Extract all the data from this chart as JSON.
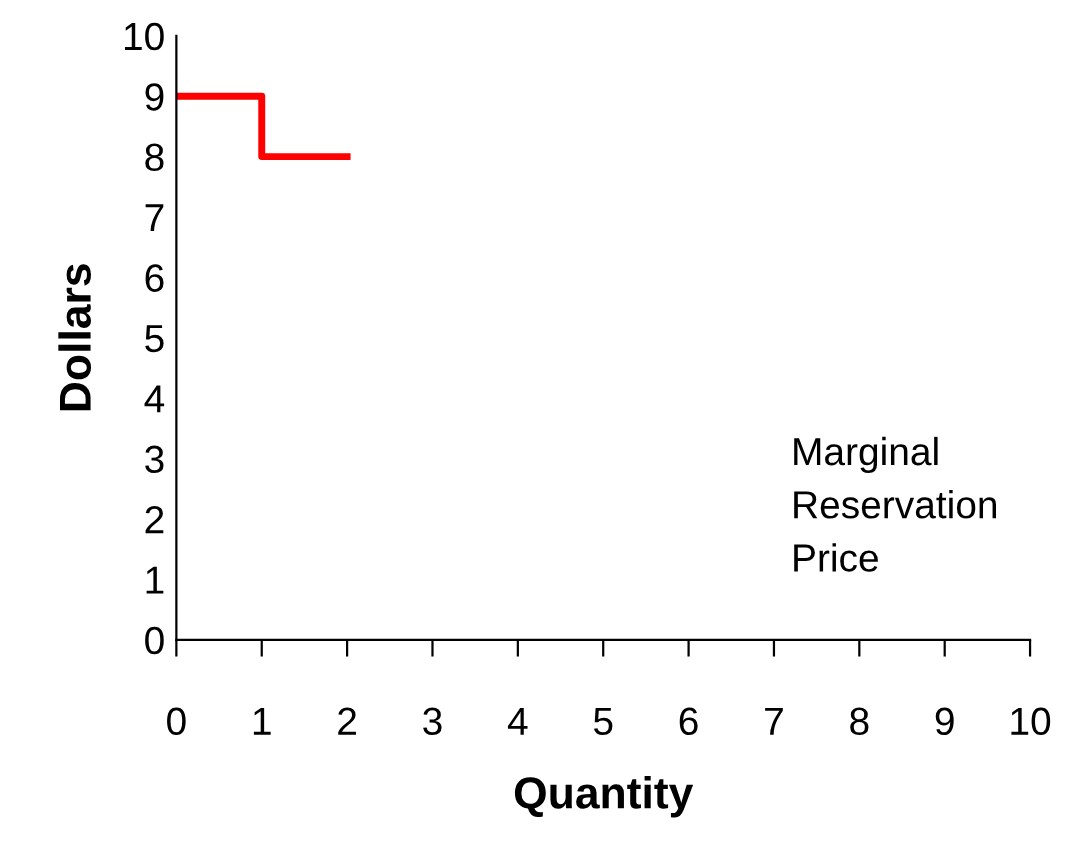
{
  "chart_data": {
    "type": "step",
    "xlabel": "Quantity",
    "ylabel": "Dollars",
    "x": [
      0,
      1,
      2
    ],
    "series": [
      {
        "color": "#ff0000",
        "values": [
          9,
          8,
          8
        ]
      }
    ],
    "xlim": [
      0,
      10
    ],
    "ylim": [
      0,
      10
    ],
    "xticks": [
      0,
      1,
      2,
      3,
      4,
      5,
      6,
      7,
      8,
      9,
      10
    ],
    "yticks": [
      0,
      1,
      2,
      3,
      4,
      5,
      6,
      7,
      8,
      9,
      10
    ],
    "grid": false,
    "legend": false,
    "annotations": [
      "Marginal\nReservation\nPrice"
    ]
  }
}
